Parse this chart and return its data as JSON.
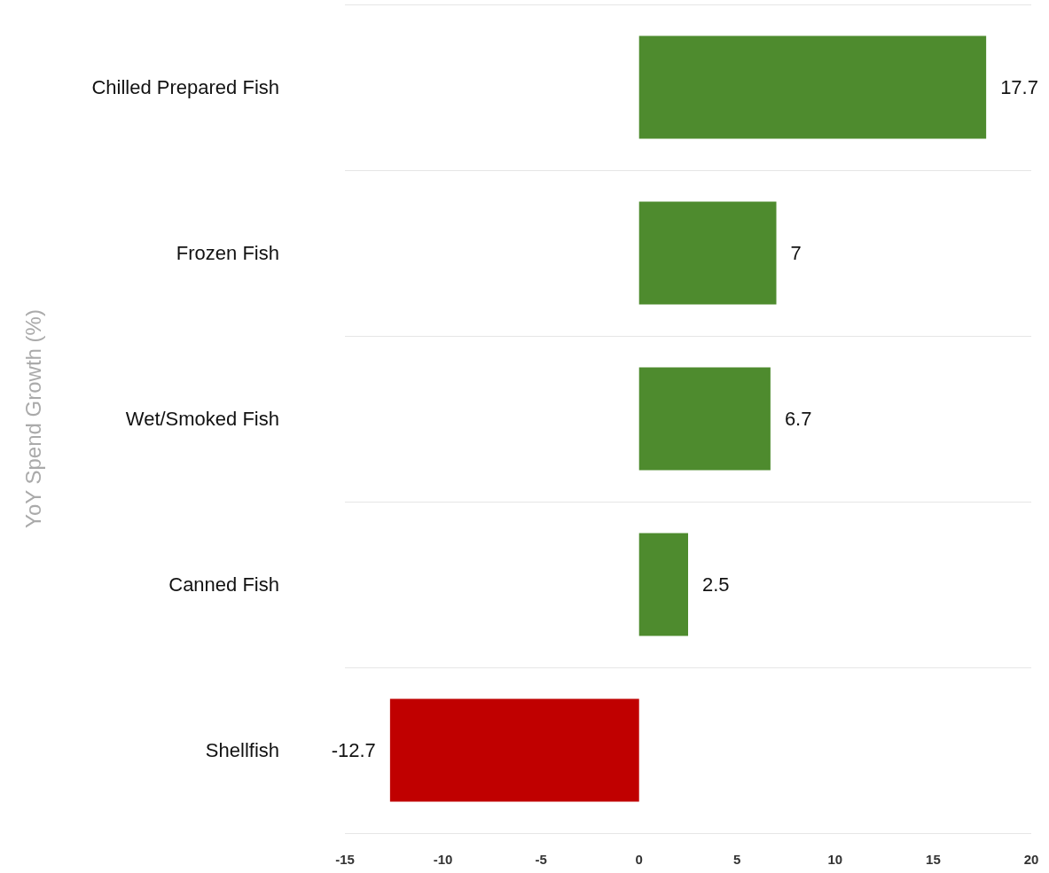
{
  "chart_data": {
    "type": "bar",
    "orientation": "horizontal",
    "ylabel": "YoY Spend Growth (%)",
    "categories": [
      "Chilled Prepared Fish",
      "Frozen Fish",
      "Wet/Smoked Fish",
      "Canned Fish",
      "Shellfish"
    ],
    "values": [
      17.7,
      7,
      6.7,
      2.5,
      -12.7
    ],
    "colors": [
      "#4e8b2e",
      "#4e8b2e",
      "#4e8b2e",
      "#4e8b2e",
      "#c00000"
    ],
    "xlim": [
      -15,
      20
    ],
    "xticks": [
      -15,
      -10,
      -5,
      0,
      5,
      10,
      15,
      20
    ],
    "grid": "y",
    "data_labels": true
  }
}
